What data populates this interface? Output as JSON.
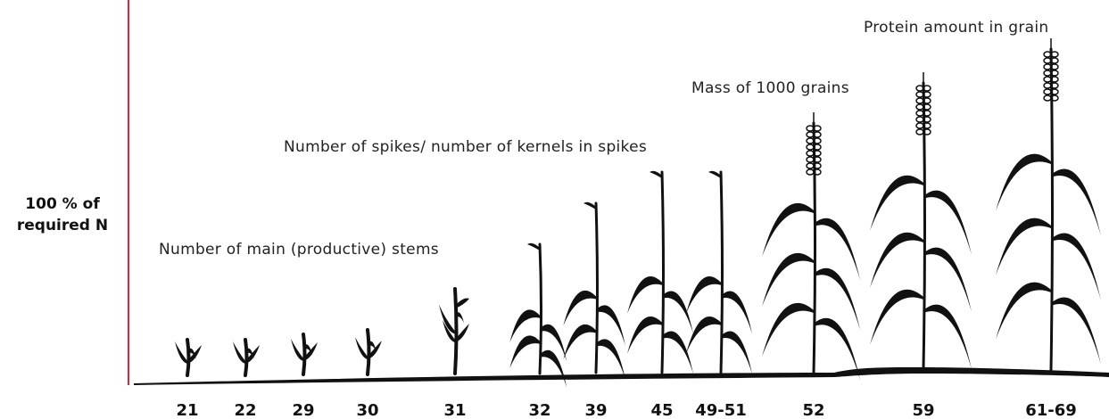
{
  "y_label": [
    "100 % of",
    "required N"
  ],
  "annotations": [
    "Number of main (productive) stems",
    "Number of spikes/ number of kernels in spikes",
    "Mass of 1000 grains",
    "Protein amount in grain"
  ],
  "stages": [
    "21",
    "22",
    "29",
    "30",
    "31",
    "32",
    "39",
    "45",
    "49-51",
    "52",
    "59",
    "61-69"
  ]
}
